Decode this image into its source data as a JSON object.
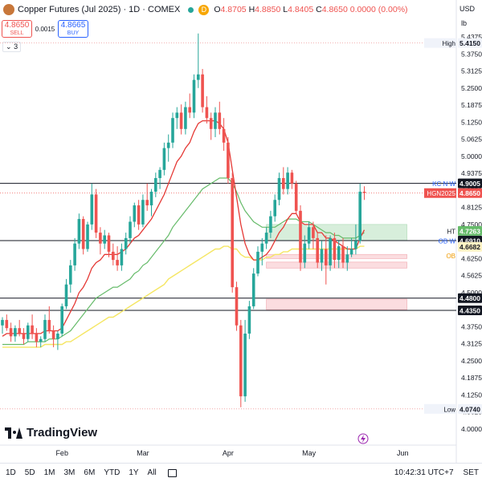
{
  "header": {
    "title": "Copper Futures (Jul 2025) · 1D · COMEX",
    "d_badge": "D",
    "ohlc": [
      {
        "k": "O",
        "v": "4.8705"
      },
      {
        "k": "H",
        "v": "4.8850"
      },
      {
        "k": "L",
        "v": "4.8405"
      },
      {
        "k": "C",
        "v": "4.8650 0.0000 (0.00%)"
      }
    ]
  },
  "trade": {
    "sell_price": "4.8650",
    "sell_label": "SELL",
    "spread": "0.0015",
    "buy_price": "4.8665",
    "buy_label": "BUY"
  },
  "indicator_count": "3",
  "currency": "USD",
  "unit": "lb",
  "branding": "TradingView",
  "bottom_bar": {
    "timeframes": [
      "1D",
      "5D",
      "1M",
      "3M",
      "6M",
      "YTD",
      "1Y",
      "All"
    ],
    "clock": "10:42:31 UTC+7",
    "set_label": "SET"
  },
  "colors": {
    "up": "#26a69a",
    "down": "#ef5350",
    "ema_fast": "#e53935",
    "ema_mid": "#66bb6a",
    "ema_slow": "#f5e663",
    "zone_green": "#d7eedb",
    "zone_red": "#fbdde0",
    "ob_line": "#2962ff"
  },
  "chart_data": {
    "type": "candlestick",
    "ylim": [
      4.0,
      5.4375
    ],
    "y_ticks": [
      "5.4375",
      "5.3750",
      "5.3125",
      "5.2500",
      "5.1875",
      "5.1250",
      "5.0625",
      "5.0000",
      "4.9375",
      "4.8750",
      "4.8125",
      "4.7500",
      "4.6875",
      "4.6250",
      "4.5625",
      "4.5000",
      "4.4375",
      "4.3750",
      "4.3125",
      "4.2500",
      "4.1875",
      "4.1250",
      "4.0625",
      "4.0000"
    ],
    "x_ticks": [
      {
        "label": "Feb",
        "i": 14
      },
      {
        "label": "Mar",
        "i": 33
      },
      {
        "label": "Apr",
        "i": 53
      },
      {
        "label": "May",
        "i": 72
      },
      {
        "label": "Jun",
        "i": 94
      }
    ],
    "candles": [
      [
        4.38,
        4.41,
        4.35,
        4.4
      ],
      [
        4.4,
        4.42,
        4.36,
        4.37
      ],
      [
        4.37,
        4.39,
        4.32,
        4.34
      ],
      [
        4.34,
        4.38,
        4.32,
        4.37
      ],
      [
        4.37,
        4.4,
        4.34,
        4.35
      ],
      [
        4.35,
        4.37,
        4.31,
        4.33
      ],
      [
        4.33,
        4.39,
        4.32,
        4.38
      ],
      [
        4.38,
        4.42,
        4.33,
        4.35
      ],
      [
        4.35,
        4.37,
        4.3,
        4.32
      ],
      [
        4.32,
        4.34,
        4.3,
        4.33
      ],
      [
        4.33,
        4.42,
        4.32,
        4.4
      ],
      [
        4.4,
        4.45,
        4.35,
        4.36
      ],
      [
        4.36,
        4.38,
        4.3,
        4.33
      ],
      [
        4.33,
        4.36,
        4.29,
        4.35
      ],
      [
        4.35,
        4.46,
        4.34,
        4.45
      ],
      [
        4.45,
        4.55,
        4.44,
        4.53
      ],
      [
        4.53,
        4.62,
        4.5,
        4.6
      ],
      [
        4.6,
        4.7,
        4.58,
        4.68
      ],
      [
        4.68,
        4.79,
        4.66,
        4.77
      ],
      [
        4.77,
        4.78,
        4.64,
        4.66
      ],
      [
        4.66,
        4.76,
        4.65,
        4.75
      ],
      [
        4.75,
        4.9,
        4.73,
        4.86
      ],
      [
        4.86,
        4.88,
        4.7,
        4.72
      ],
      [
        4.72,
        4.74,
        4.64,
        4.68
      ],
      [
        4.68,
        4.73,
        4.66,
        4.71
      ],
      [
        4.71,
        4.72,
        4.63,
        4.65
      ],
      [
        4.65,
        4.68,
        4.6,
        4.62
      ],
      [
        4.62,
        4.67,
        4.58,
        4.6
      ],
      [
        4.6,
        4.68,
        4.58,
        4.66
      ],
      [
        4.66,
        4.72,
        4.64,
        4.7
      ],
      [
        4.7,
        4.78,
        4.68,
        4.76
      ],
      [
        4.76,
        4.83,
        4.74,
        4.82
      ],
      [
        4.82,
        4.84,
        4.73,
        4.75
      ],
      [
        4.75,
        4.86,
        4.74,
        4.84
      ],
      [
        4.84,
        4.9,
        4.8,
        4.82
      ],
      [
        4.82,
        4.88,
        4.78,
        4.87
      ],
      [
        4.87,
        4.94,
        4.85,
        4.92
      ],
      [
        4.92,
        4.96,
        4.88,
        4.95
      ],
      [
        4.95,
        5.05,
        4.93,
        5.03
      ],
      [
        5.03,
        5.08,
        4.98,
        5.05
      ],
      [
        5.05,
        5.16,
        5.03,
        5.14
      ],
      [
        5.14,
        5.18,
        5.1,
        5.16
      ],
      [
        5.16,
        5.19,
        5.08,
        5.1
      ],
      [
        5.1,
        5.2,
        5.08,
        5.18
      ],
      [
        5.18,
        5.23,
        5.14,
        5.16
      ],
      [
        5.16,
        5.3,
        5.14,
        5.28
      ],
      [
        5.28,
        5.45,
        5.25,
        5.3
      ],
      [
        5.3,
        5.32,
        5.16,
        5.18
      ],
      [
        5.18,
        5.22,
        5.12,
        5.14
      ],
      [
        5.14,
        5.16,
        5.06,
        5.1
      ],
      [
        5.1,
        5.18,
        5.07,
        5.16
      ],
      [
        5.16,
        5.2,
        5.08,
        5.1
      ],
      [
        5.1,
        5.14,
        5.02,
        5.05
      ],
      [
        5.05,
        5.07,
        4.9,
        4.92
      ],
      [
        4.92,
        4.94,
        4.5,
        4.52
      ],
      [
        4.52,
        4.54,
        4.36,
        4.38
      ],
      [
        4.38,
        4.4,
        4.08,
        4.12
      ],
      [
        4.12,
        4.4,
        4.1,
        4.35
      ],
      [
        4.35,
        4.47,
        4.33,
        4.45
      ],
      [
        4.45,
        4.59,
        4.44,
        4.57
      ],
      [
        4.57,
        4.67,
        4.56,
        4.65
      ],
      [
        4.65,
        4.7,
        4.6,
        4.68
      ],
      [
        4.68,
        4.74,
        4.66,
        4.72
      ],
      [
        4.72,
        4.8,
        4.7,
        4.78
      ],
      [
        4.78,
        4.86,
        4.76,
        4.84
      ],
      [
        4.84,
        4.94,
        4.82,
        4.92
      ],
      [
        4.92,
        4.96,
        4.86,
        4.88
      ],
      [
        4.88,
        4.96,
        4.86,
        4.94
      ],
      [
        4.94,
        4.95,
        4.88,
        4.9
      ],
      [
        4.9,
        4.91,
        4.79,
        4.8
      ],
      [
        4.8,
        4.82,
        4.58,
        4.61
      ],
      [
        4.61,
        4.71,
        4.59,
        4.68
      ],
      [
        4.68,
        4.76,
        4.66,
        4.74
      ],
      [
        4.74,
        4.76,
        4.66,
        4.7
      ],
      [
        4.7,
        4.72,
        4.59,
        4.61
      ],
      [
        4.61,
        4.69,
        4.58,
        4.66
      ],
      [
        4.66,
        4.71,
        4.53,
        4.6
      ],
      [
        4.6,
        4.71,
        4.58,
        4.7
      ],
      [
        4.7,
        4.72,
        4.59,
        4.62
      ],
      [
        4.62,
        4.69,
        4.59,
        4.67
      ],
      [
        4.67,
        4.7,
        4.59,
        4.61
      ],
      [
        4.61,
        4.67,
        4.58,
        4.64
      ],
      [
        4.64,
        4.7,
        4.63,
        4.66
      ],
      [
        4.66,
        4.75,
        4.64,
        4.69
      ],
      [
        4.69,
        4.9,
        4.68,
        4.87
      ],
      [
        4.87,
        4.89,
        4.84,
        4.865
      ]
    ],
    "ema_fast": [
      4.34,
      4.35,
      4.35,
      4.35,
      4.35,
      4.35,
      4.35,
      4.35,
      4.35,
      4.35,
      4.36,
      4.36,
      4.36,
      4.36,
      4.37,
      4.4,
      4.43,
      4.46,
      4.5,
      4.52,
      4.55,
      4.59,
      4.61,
      4.62,
      4.64,
      4.64,
      4.64,
      4.64,
      4.65,
      4.66,
      4.68,
      4.7,
      4.71,
      4.73,
      4.75,
      4.77,
      4.8,
      4.83,
      4.86,
      4.9,
      4.94,
      4.98,
      5.0,
      5.03,
      5.05,
      5.09,
      5.12,
      5.13,
      5.13,
      5.13,
      5.13,
      5.12,
      5.1,
      5.05,
      4.95,
      4.85,
      4.75,
      4.68,
      4.64,
      4.62,
      4.62,
      4.63,
      4.64,
      4.66,
      4.69,
      4.72,
      4.74,
      4.77,
      4.79,
      4.79,
      4.76,
      4.75,
      4.75,
      4.75,
      4.72,
      4.72,
      4.7,
      4.7,
      4.69,
      4.68,
      4.67,
      4.66,
      4.66,
      4.66,
      4.7,
      4.73
    ],
    "ema_mid": [
      4.31,
      4.31,
      4.31,
      4.31,
      4.31,
      4.31,
      4.32,
      4.32,
      4.32,
      4.32,
      4.32,
      4.33,
      4.33,
      4.33,
      4.34,
      4.35,
      4.36,
      4.38,
      4.4,
      4.42,
      4.44,
      4.46,
      4.48,
      4.49,
      4.5,
      4.51,
      4.52,
      4.52,
      4.53,
      4.54,
      4.55,
      4.57,
      4.58,
      4.6,
      4.61,
      4.63,
      4.65,
      4.67,
      4.69,
      4.71,
      4.74,
      4.76,
      4.78,
      4.8,
      4.82,
      4.84,
      4.86,
      4.88,
      4.89,
      4.9,
      4.91,
      4.92,
      4.92,
      4.92,
      4.9,
      4.87,
      4.83,
      4.8,
      4.78,
      4.76,
      4.75,
      4.74,
      4.74,
      4.74,
      4.74,
      4.75,
      4.76,
      4.77,
      4.77,
      4.77,
      4.76,
      4.76,
      4.76,
      4.75,
      4.74,
      4.73,
      4.72,
      4.72,
      4.71,
      4.71,
      4.7,
      4.7,
      4.7,
      4.7,
      4.71,
      4.72
    ],
    "ema_slow": [
      4.3,
      4.3,
      4.3,
      4.3,
      4.3,
      4.3,
      4.3,
      4.3,
      4.3,
      4.3,
      4.31,
      4.31,
      4.31,
      4.31,
      4.31,
      4.32,
      4.32,
      4.33,
      4.34,
      4.35,
      4.36,
      4.37,
      4.38,
      4.39,
      4.4,
      4.41,
      4.41,
      4.42,
      4.43,
      4.44,
      4.45,
      4.46,
      4.47,
      4.48,
      4.49,
      4.5,
      4.51,
      4.52,
      4.53,
      4.55,
      4.56,
      4.57,
      4.58,
      4.59,
      4.6,
      4.61,
      4.62,
      4.63,
      4.64,
      4.65,
      4.66,
      4.66,
      4.67,
      4.67,
      4.66,
      4.66,
      4.64,
      4.63,
      4.63,
      4.62,
      4.62,
      4.62,
      4.63,
      4.63,
      4.64,
      4.64,
      4.65,
      4.65,
      4.66,
      4.66,
      4.66,
      4.66,
      4.66,
      4.66,
      4.66,
      4.66,
      4.66,
      4.66,
      4.66,
      4.66,
      4.66,
      4.66,
      4.66,
      4.66,
      4.67,
      4.67
    ],
    "hlines": [
      {
        "name": "KC N W",
        "value": 4.9005,
        "label": "4.9005"
      },
      {
        "name": "OB W",
        "value": 4.691,
        "label": "4.6910"
      },
      {
        "name": "",
        "value": 4.48,
        "label": "4.4800"
      },
      {
        "name": "",
        "value": 4.435,
        "label": "4.4350"
      }
    ],
    "dotted_lines": [
      {
        "name": "High",
        "value": 5.415,
        "label": "5.4150"
      },
      {
        "name": "Low",
        "value": 4.074,
        "label": "4.0740"
      },
      {
        "name": "HGN2025",
        "value": 4.865,
        "label": "4.8650"
      }
    ],
    "zones": [
      {
        "name": "HT",
        "top": 4.75,
        "bottom": 4.691,
        "i0": 62,
        "i1": 95,
        "kind": "green",
        "label": "4.7263"
      },
      {
        "name": "OB",
        "top": 4.64,
        "bottom": 4.625,
        "i0": 62,
        "i1": 95,
        "kind": "red",
        "label": "4.6682"
      },
      {
        "name": "",
        "top": 4.612,
        "bottom": 4.59,
        "i0": 62,
        "i1": 95,
        "kind": "red",
        "label": ""
      },
      {
        "name": "",
        "top": 4.476,
        "bottom": 4.438,
        "i0": 62,
        "i1": 95,
        "kind": "red",
        "label": ""
      }
    ]
  }
}
